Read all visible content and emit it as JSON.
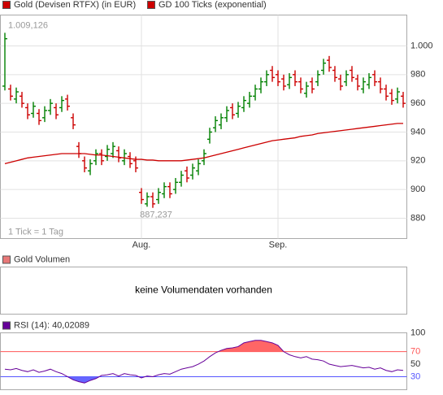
{
  "chart_data": [
    {
      "type": "ohlc",
      "series": [
        {
          "name": "Gold (Devisen RTFX) (in EUR)",
          "color": "#cc0000",
          "open": [
            972,
            970,
            963,
            965,
            957,
            953,
            953,
            950,
            955,
            957,
            957,
            963,
            950,
            930,
            920,
            913,
            920,
            925,
            923,
            925,
            927,
            920,
            923,
            920,
            898,
            890,
            895,
            893,
            897,
            902,
            900,
            905,
            913,
            910,
            913,
            920,
            935,
            943,
            945,
            950,
            957,
            953,
            957,
            960,
            965,
            970,
            975,
            983,
            980,
            977,
            973,
            980,
            975,
            967,
            975,
            975,
            983,
            990,
            983,
            977,
            975,
            983,
            977,
            970,
            973,
            980,
            975,
            970,
            967,
            963,
            965
          ],
          "high": [
            1009.126,
            973,
            971,
            968,
            960,
            961,
            956,
            958,
            963,
            960,
            965,
            966,
            953,
            933,
            923,
            921,
            928,
            928,
            931,
            933,
            930,
            928,
            926,
            923,
            901,
            898,
            898,
            901,
            905,
            905,
            908,
            913,
            916,
            918,
            921,
            928,
            943,
            951,
            953,
            958,
            960,
            961,
            965,
            968,
            973,
            978,
            983,
            986,
            983,
            980,
            981,
            983,
            978,
            975,
            978,
            983,
            991,
            993,
            986,
            980,
            983,
            986,
            980,
            978,
            981,
            983,
            978,
            973,
            970,
            971,
            968
          ],
          "low": [
            969,
            962,
            960,
            957,
            949,
            950,
            945,
            947,
            952,
            949,
            954,
            955,
            942,
            922,
            912,
            910,
            917,
            917,
            920,
            922,
            919,
            917,
            915,
            912,
            890,
            888,
            887.237,
            890,
            894,
            894,
            897,
            902,
            905,
            907,
            910,
            917,
            932,
            940,
            942,
            947,
            949,
            950,
            954,
            957,
            962,
            967,
            972,
            975,
            972,
            969,
            970,
            972,
            967,
            964,
            967,
            972,
            980,
            982,
            975,
            969,
            972,
            975,
            969,
            967,
            970,
            972,
            967,
            962,
            959,
            960,
            957
          ],
          "close": [
            1005,
            965,
            968,
            960,
            952,
            958,
            948,
            955,
            960,
            952,
            962,
            958,
            945,
            925,
            915,
            918,
            925,
            920,
            928,
            930,
            922,
            925,
            918,
            915,
            893,
            895,
            890,
            898,
            902,
            897,
            905,
            910,
            908,
            915,
            918,
            925,
            940,
            948,
            950,
            955,
            952,
            958,
            962,
            965,
            970,
            975,
            980,
            978,
            975,
            972,
            978,
            975,
            970,
            972,
            970,
            980,
            988,
            985,
            978,
            972,
            980,
            978,
            972,
            975,
            978,
            975,
            970,
            965,
            962,
            968,
            960
          ]
        },
        {
          "name": "GD 100 Ticks (exponential)",
          "color": "#cc0000",
          "values": [
            918,
            919,
            920,
            921,
            922,
            922.5,
            923,
            923.5,
            924,
            924.5,
            925,
            925,
            925,
            925,
            925,
            924.5,
            924,
            924,
            923.5,
            923,
            922.5,
            922,
            921.5,
            921,
            921,
            920.5,
            920.5,
            920,
            920,
            920,
            920,
            920,
            920.5,
            921,
            921.5,
            922,
            923,
            924,
            925,
            926,
            927,
            928,
            929,
            930,
            931,
            932,
            933,
            934,
            934.5,
            935,
            935.5,
            936,
            937,
            937.5,
            938,
            939,
            939.5,
            940,
            940.5,
            941,
            941.5,
            942,
            942.5,
            943,
            943.5,
            944,
            944.5,
            945,
            945.5,
            946,
            946
          ]
        }
      ],
      "up_color": "#008000",
      "down_color": "#cc0000",
      "categories": [
        null,
        null,
        null,
        null,
        null,
        null,
        null,
        null,
        null,
        null,
        null,
        null,
        null,
        null,
        null,
        null,
        null,
        null,
        null,
        null,
        null,
        null,
        null,
        null,
        "Aug.",
        null,
        null,
        null,
        null,
        null,
        null,
        null,
        null,
        null,
        null,
        null,
        null,
        null,
        null,
        null,
        null,
        null,
        null,
        null,
        null,
        null,
        null,
        null,
        "Sep.",
        null,
        null,
        null,
        null,
        null,
        null,
        null,
        null,
        null,
        null,
        null,
        null,
        null,
        null,
        null,
        null,
        null,
        null,
        null,
        null,
        null,
        null
      ],
      "ylim": [
        865.85,
        1021.5
      ],
      "yticks": [
        880,
        900,
        920,
        940,
        960,
        980,
        {
          "value": 1000,
          "label": "1.000"
        }
      ],
      "annotations": [
        {
          "value": 1009.126,
          "label": "1.009,126"
        },
        {
          "value": 887.237,
          "label": "887,237"
        }
      ],
      "note": "1 Tick = 1 Tag",
      "grid": true
    },
    {
      "type": "empty",
      "title": "Gold Volumen",
      "color": "#e87878",
      "message": "keine Volumendaten vorhanden"
    },
    {
      "type": "line",
      "series": [
        {
          "name": "RSI (14): 40,02089",
          "color": "#660099",
          "values": [
            42,
            41,
            43,
            40,
            38,
            41,
            37,
            39,
            42,
            38,
            35,
            30,
            25,
            22,
            20,
            24,
            27,
            32,
            33,
            35,
            31,
            35,
            33,
            32,
            28,
            31,
            30,
            33,
            35,
            34,
            38,
            42,
            44,
            46,
            50,
            55,
            62,
            68,
            72,
            75,
            76,
            78,
            84,
            86,
            88,
            88,
            86,
            84,
            80,
            70,
            65,
            62,
            60,
            62,
            58,
            57,
            55,
            50,
            48,
            46,
            47,
            48,
            46,
            44,
            45,
            42,
            44,
            40,
            38,
            41,
            40.02089
          ]
        }
      ],
      "ylim": [
        9.2,
        100
      ],
      "yticks": [
        30,
        50,
        70,
        100
      ],
      "thresholds": [
        {
          "value": 70,
          "color": "#ff5555",
          "fill": "#ff6666"
        },
        {
          "value": 30,
          "color": "#5555ff",
          "fill": "#6666ff"
        }
      ]
    }
  ]
}
